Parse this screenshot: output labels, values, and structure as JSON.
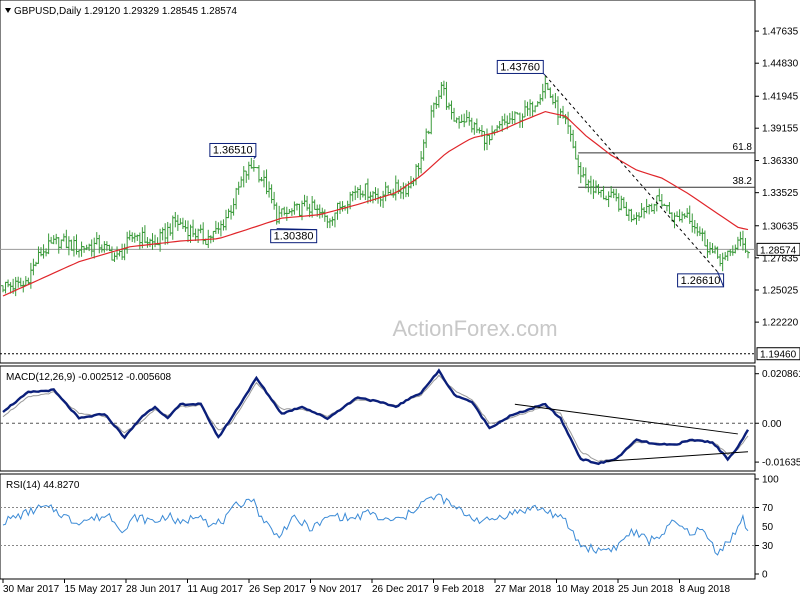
{
  "header": {
    "symbol_line": "GBPUSD,Daily  1.29120 1.29329 1.28545 1.28574",
    "indicator_arrow": "triangle-down-icon"
  },
  "watermark": "ActionForex.com",
  "colors": {
    "price": "#3a9a3a",
    "ma": "#e0252a",
    "macd": "#0b1f7a",
    "macd_signal": "#9a9a9a",
    "rsi": "#3c8bd6",
    "lines": "#333333"
  },
  "chart_data": [
    {
      "type": "line",
      "title": "GBPUSD,Daily  1.29120 1.29329 1.28545 1.28574",
      "ylim": [
        1.19,
        1.5
      ],
      "y_ticks": [
        "1.47635",
        "1.44830",
        "1.41945",
        "1.39155",
        "1.36330",
        "1.33525",
        "1.30635",
        "1.27835",
        "1.25025",
        "1.22220"
      ],
      "y_tick_values": [
        1.47635,
        1.4483,
        1.41945,
        1.39155,
        1.3633,
        1.33525,
        1.30635,
        1.27835,
        1.25025,
        1.2222
      ],
      "x_labels": [
        "30 Mar 2017",
        "15 May 2017",
        "28 Jun 2017",
        "11 Aug 2017",
        "26 Sep 2017",
        "9 Nov 2017",
        "26 Dec 2017",
        "9 Feb 2018",
        "27 Mar 2018",
        "10 May 2018",
        "25 Jun 2018",
        "8 Aug 2018"
      ],
      "current_price": 1.28574,
      "current_price_label": "1.28574",
      "bottom_line": 1.1946,
      "bottom_line_label": "1.19460",
      "annotations": [
        {
          "label": "1.43760",
          "value": 1.4376,
          "bar": 214
        },
        {
          "label": "1.36510",
          "value": 1.3651,
          "bar": 99
        },
        {
          "label": "1.30380",
          "value": 1.3038,
          "bar": 108
        },
        {
          "label": "1.26610",
          "value": 1.2661,
          "bar": 282
        }
      ],
      "fib_levels": [
        {
          "label": "61.8",
          "value": 1.37
        },
        {
          "label": "38.2",
          "value": 1.34
        }
      ],
      "series": [
        {
          "kind": "ohlc",
          "points": [
            [
              0,
              1.254
            ],
            [
              8,
              1.254
            ],
            [
              15,
              1.283
            ],
            [
              22,
              1.293
            ],
            [
              30,
              1.287
            ],
            [
              38,
              1.29
            ],
            [
              45,
              1.278
            ],
            [
              52,
              1.299
            ],
            [
              60,
              1.29
            ],
            [
              68,
              1.31
            ],
            [
              72,
              1.305
            ],
            [
              80,
              1.295
            ],
            [
              85,
              1.302
            ],
            [
              90,
              1.322
            ],
            [
              95,
              1.35
            ],
            [
              99,
              1.36
            ],
            [
              104,
              1.34
            ],
            [
              108,
              1.315
            ],
            [
              113,
              1.317
            ],
            [
              120,
              1.324
            ],
            [
              128,
              1.312
            ],
            [
              135,
              1.328
            ],
            [
              140,
              1.34
            ],
            [
              148,
              1.333
            ],
            [
              155,
              1.338
            ],
            [
              160,
              1.34
            ],
            [
              165,
              1.365
            ],
            [
              170,
              1.41
            ],
            [
              173,
              1.43
            ],
            [
              177,
              1.4
            ],
            [
              182,
              1.4
            ],
            [
              187,
              1.39
            ],
            [
              192,
              1.38
            ],
            [
              197,
              1.395
            ],
            [
              202,
              1.4
            ],
            [
              208,
              1.408
            ],
            [
              214,
              1.43
            ],
            [
              218,
              1.41
            ],
            [
              223,
              1.39
            ],
            [
              228,
              1.35
            ],
            [
              235,
              1.335
            ],
            [
              242,
              1.328
            ],
            [
              248,
              1.315
            ],
            [
              255,
              1.325
            ],
            [
              260,
              1.328
            ],
            [
              265,
              1.312
            ],
            [
              270,
              1.318
            ],
            [
              275,
              1.3
            ],
            [
              280,
              1.282
            ],
            [
              285,
              1.276
            ],
            [
              290,
              1.292
            ],
            [
              294,
              1.286
            ]
          ]
        },
        {
          "kind": "ma",
          "points": [
            [
              0,
              1.245
            ],
            [
              15,
              1.26
            ],
            [
              30,
              1.275
            ],
            [
              50,
              1.288
            ],
            [
              70,
              1.293
            ],
            [
              85,
              1.295
            ],
            [
              99,
              1.305
            ],
            [
              110,
              1.313
            ],
            [
              125,
              1.316
            ],
            [
              140,
              1.325
            ],
            [
              155,
              1.335
            ],
            [
              165,
              1.35
            ],
            [
              175,
              1.37
            ],
            [
              185,
              1.383
            ],
            [
              195,
              1.388
            ],
            [
              205,
              1.398
            ],
            [
              214,
              1.406
            ],
            [
              222,
              1.402
            ],
            [
              230,
              1.385
            ],
            [
              240,
              1.368
            ],
            [
              250,
              1.355
            ],
            [
              260,
              1.348
            ],
            [
              270,
              1.335
            ],
            [
              280,
              1.32
            ],
            [
              290,
              1.305
            ],
            [
              294,
              1.303
            ]
          ]
        }
      ],
      "trendline": [
        [
          214,
          1.4376
        ],
        [
          282,
          1.2661
        ]
      ]
    },
    {
      "type": "line",
      "title": "MACD(12,26,9) -0.002512 -0.005608",
      "ylim": [
        -0.018,
        0.022
      ],
      "y_ticks": [
        "0.020861",
        "0.00",
        "-0.016357"
      ],
      "y_tick_values": [
        0.020861,
        0.0,
        -0.016357
      ],
      "series": [
        {
          "name": "MACD",
          "points": [
            [
              0,
              0.005
            ],
            [
              10,
              0.013
            ],
            [
              20,
              0.014
            ],
            [
              30,
              0.002
            ],
            [
              40,
              0.004
            ],
            [
              48,
              -0.006
            ],
            [
              55,
              0.003
            ],
            [
              60,
              0.007
            ],
            [
              65,
              0.002
            ],
            [
              70,
              0.008
            ],
            [
              78,
              0.008
            ],
            [
              85,
              -0.006
            ],
            [
              90,
              0.002
            ],
            [
              100,
              0.019
            ],
            [
              110,
              0.004
            ],
            [
              118,
              0.007
            ],
            [
              128,
              0.002
            ],
            [
              140,
              0.011
            ],
            [
              148,
              0.009
            ],
            [
              155,
              0.007
            ],
            [
              165,
              0.013
            ],
            [
              172,
              0.022
            ],
            [
              178,
              0.012
            ],
            [
              185,
              0.009
            ],
            [
              192,
              -0.002
            ],
            [
              200,
              0.003
            ],
            [
              208,
              0.006
            ],
            [
              214,
              0.008
            ],
            [
              220,
              0.002
            ],
            [
              228,
              -0.015
            ],
            [
              235,
              -0.017
            ],
            [
              242,
              -0.015
            ],
            [
              250,
              -0.007
            ],
            [
              258,
              -0.009
            ],
            [
              265,
              -0.009
            ],
            [
              272,
              -0.007
            ],
            [
              280,
              -0.008
            ],
            [
              286,
              -0.015
            ],
            [
              290,
              -0.01
            ],
            [
              294,
              -0.003
            ]
          ]
        },
        {
          "name": "Signal",
          "points": [
            [
              0,
              0.003
            ],
            [
              10,
              0.011
            ],
            [
              20,
              0.013
            ],
            [
              30,
              0.004
            ],
            [
              40,
              0.003
            ],
            [
              48,
              -0.004
            ],
            [
              55,
              0.001
            ],
            [
              60,
              0.006
            ],
            [
              65,
              0.003
            ],
            [
              70,
              0.007
            ],
            [
              78,
              0.0075
            ],
            [
              85,
              -0.003
            ],
            [
              90,
              0.0
            ],
            [
              100,
              0.017
            ],
            [
              110,
              0.006
            ],
            [
              118,
              0.006
            ],
            [
              128,
              0.003
            ],
            [
              140,
              0.01
            ],
            [
              148,
              0.009
            ],
            [
              155,
              0.0075
            ],
            [
              165,
              0.012
            ],
            [
              172,
              0.02
            ],
            [
              178,
              0.014
            ],
            [
              185,
              0.01
            ],
            [
              192,
              0.0
            ],
            [
              200,
              0.002
            ],
            [
              208,
              0.005
            ],
            [
              214,
              0.007
            ],
            [
              220,
              0.004
            ],
            [
              228,
              -0.012
            ],
            [
              235,
              -0.016
            ],
            [
              242,
              -0.015
            ],
            [
              250,
              -0.008
            ],
            [
              258,
              -0.0085
            ],
            [
              265,
              -0.009
            ],
            [
              272,
              -0.0075
            ],
            [
              280,
              -0.0075
            ],
            [
              286,
              -0.013
            ],
            [
              290,
              -0.011
            ],
            [
              294,
              -0.0056
            ]
          ]
        }
      ],
      "trendlines": [
        [
          [
            202,
            0.008
          ],
          [
            290,
            -0.0045
          ]
        ],
        [
          [
            238,
            -0.016
          ],
          [
            294,
            -0.012
          ]
        ]
      ]
    },
    {
      "type": "line",
      "title": "RSI(14) 44.8270",
      "ylim": [
        0,
        100
      ],
      "y_ticks": [
        "100",
        "70",
        "30",
        "0"
      ],
      "y_tick_values": [
        100,
        70,
        30,
        0
      ],
      "y_tick_extra": [
        "50"
      ],
      "y_tick_extra_values": [
        50
      ],
      "series": [
        {
          "name": "RSI",
          "points": [
            [
              0,
              55
            ],
            [
              10,
              65
            ],
            [
              15,
              70
            ],
            [
              20,
              68
            ],
            [
              28,
              55
            ],
            [
              35,
              58
            ],
            [
              42,
              62
            ],
            [
              48,
              45
            ],
            [
              52,
              60
            ],
            [
              60,
              55
            ],
            [
              65,
              62
            ],
            [
              70,
              52
            ],
            [
              78,
              65
            ],
            [
              82,
              50
            ],
            [
              88,
              58
            ],
            [
              92,
              72
            ],
            [
              98,
              80
            ],
            [
              102,
              60
            ],
            [
              108,
              40
            ],
            [
              115,
              58
            ],
            [
              122,
              48
            ],
            [
              130,
              62
            ],
            [
              138,
              58
            ],
            [
              145,
              65
            ],
            [
              150,
              56
            ],
            [
              158,
              58
            ],
            [
              165,
              75
            ],
            [
              172,
              82
            ],
            [
              178,
              70
            ],
            [
              185,
              60
            ],
            [
              190,
              55
            ],
            [
              198,
              62
            ],
            [
              204,
              66
            ],
            [
              210,
              70
            ],
            [
              216,
              65
            ],
            [
              222,
              55
            ],
            [
              228,
              30
            ],
            [
              235,
              25
            ],
            [
              242,
              28
            ],
            [
              248,
              45
            ],
            [
              255,
              35
            ],
            [
              260,
              42
            ],
            [
              265,
              55
            ],
            [
              270,
              44
            ],
            [
              276,
              46
            ],
            [
              282,
              23
            ],
            [
              288,
              40
            ],
            [
              292,
              58
            ],
            [
              294,
              45
            ]
          ]
        }
      ]
    }
  ]
}
